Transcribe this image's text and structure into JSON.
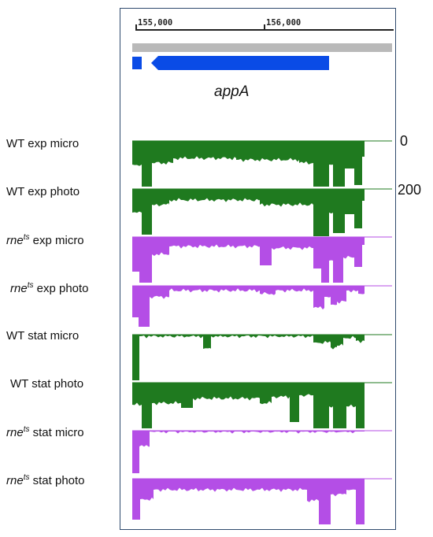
{
  "ruler": {
    "ticks": [
      {
        "label": "155,000",
        "pos": 155000
      },
      {
        "label": "156,000",
        "pos": 156000
      }
    ]
  },
  "gene": {
    "name": "appA",
    "colors": {
      "feature": "#0a4be6",
      "reference": "#b9b9b9"
    }
  },
  "scale": {
    "top_label": "0",
    "bottom_label": "200"
  },
  "colors": {
    "wt": "#1f7a1f",
    "rne": "#b44ee6"
  },
  "tracks": [
    {
      "name_prefix": "WT",
      "name_sup": "",
      "name_suffix": " exp micro",
      "italic_prefix": false,
      "color_key": "wt"
    },
    {
      "name_prefix": "WT",
      "name_sup": "",
      "name_suffix": " exp photo",
      "italic_prefix": false,
      "color_key": "wt"
    },
    {
      "name_prefix": "rne",
      "name_sup": "ts",
      "name_suffix": " exp micro",
      "italic_prefix": true,
      "color_key": "rne"
    },
    {
      "name_prefix": "rne",
      "name_sup": "ts",
      "name_suffix": " exp photo",
      "italic_prefix": true,
      "color_key": "rne"
    },
    {
      "name_prefix": "WT",
      "name_sup": "",
      "name_suffix": " stat micro",
      "italic_prefix": false,
      "color_key": "wt"
    },
    {
      "name_prefix": "WT",
      "name_sup": "",
      "name_suffix": " stat photo",
      "italic_prefix": false,
      "color_key": "wt"
    },
    {
      "name_prefix": "rne",
      "name_sup": "ts",
      "name_suffix": " stat micro",
      "italic_prefix": true,
      "color_key": "rne"
    },
    {
      "name_prefix": "rne",
      "name_sup": "ts",
      "name_suffix": " stat photo",
      "italic_prefix": true,
      "color_key": "rne"
    }
  ]
}
